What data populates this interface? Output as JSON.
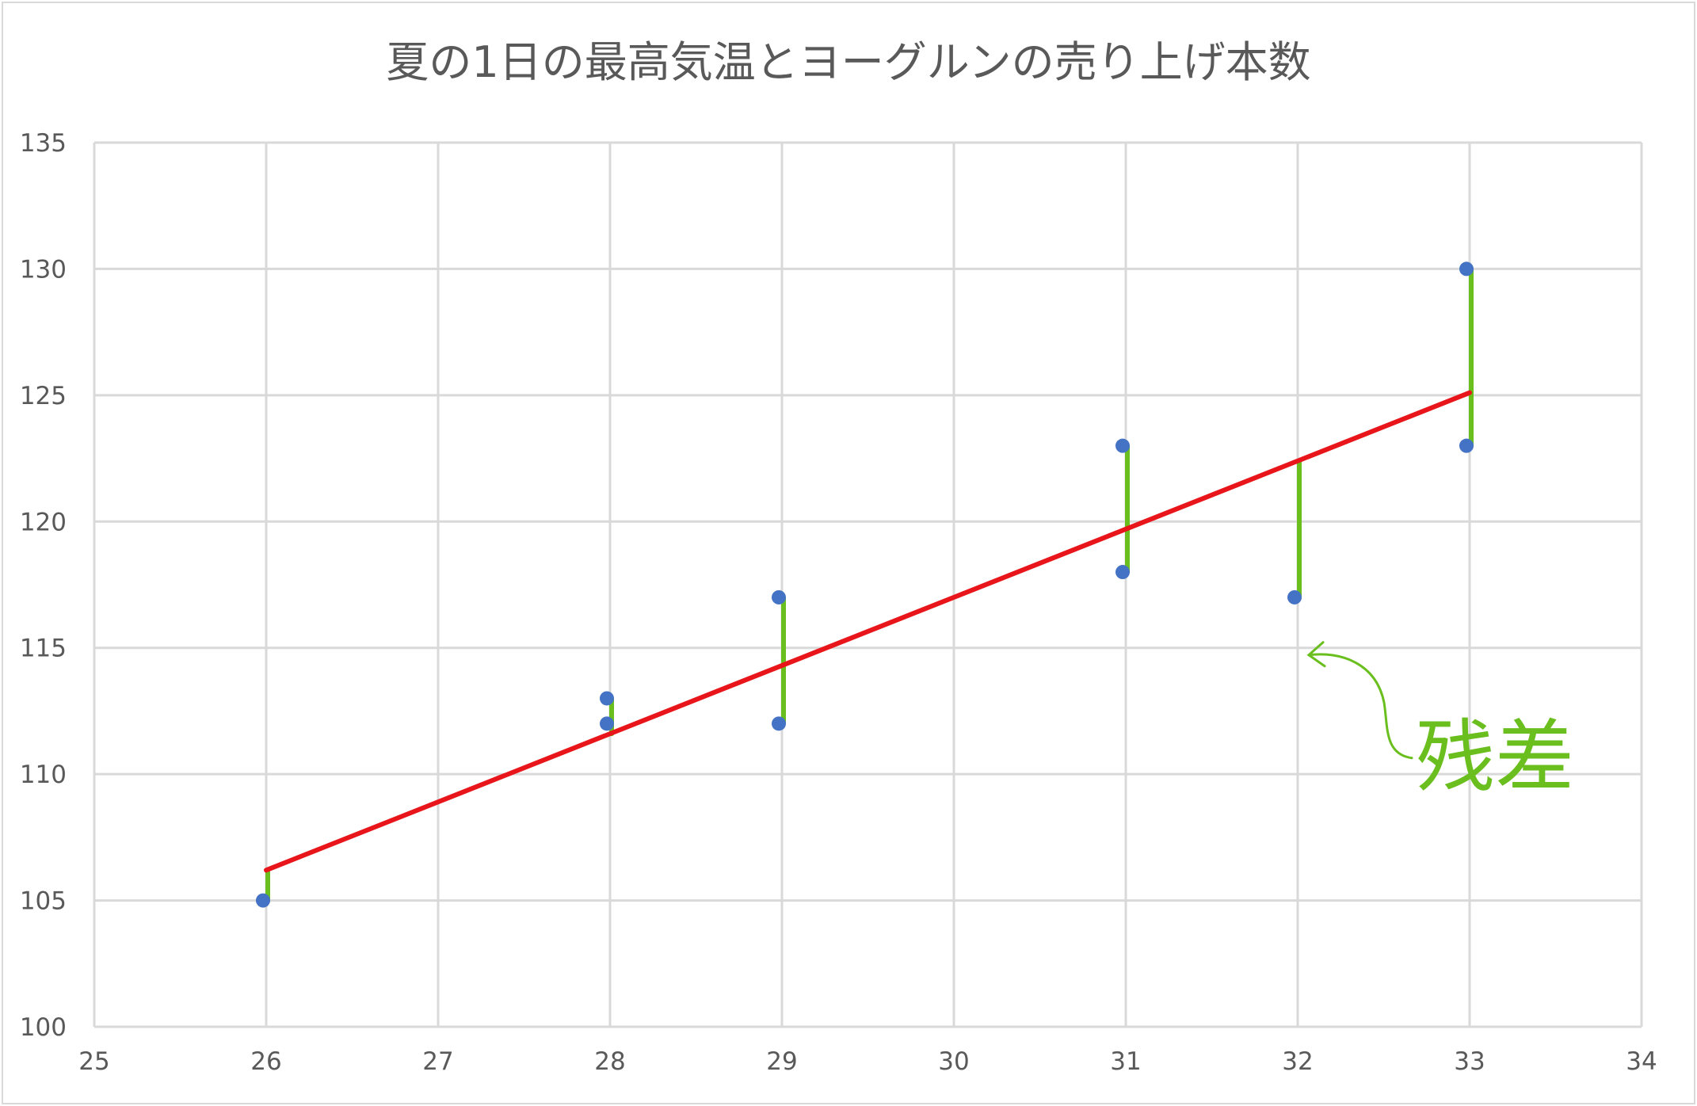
{
  "chart_data": {
    "type": "scatter",
    "title": "夏の1日の最高気温とヨーグルンの売り上げ本数",
    "xlabel": "",
    "ylabel": "",
    "xlim": [
      25,
      34
    ],
    "ylim": [
      100,
      135
    ],
    "x_ticks": [
      "25",
      "26",
      "27",
      "28",
      "29",
      "30",
      "31",
      "32",
      "33",
      "34"
    ],
    "y_ticks": [
      "100",
      "105",
      "110",
      "115",
      "120",
      "125",
      "130",
      "135"
    ],
    "grid": true,
    "points": [
      {
        "x": 26,
        "y": 105
      },
      {
        "x": 28,
        "y": 113
      },
      {
        "x": 28,
        "y": 112
      },
      {
        "x": 29,
        "y": 117
      },
      {
        "x": 29,
        "y": 112
      },
      {
        "x": 31,
        "y": 123
      },
      {
        "x": 31,
        "y": 118
      },
      {
        "x": 32,
        "y": 117
      },
      {
        "x": 33,
        "y": 130
      },
      {
        "x": 33,
        "y": 123
      }
    ],
    "regression_line": {
      "slope": 2.7,
      "intercept": 36,
      "x_range": [
        26,
        33
      ]
    },
    "annotation": {
      "text": "残差",
      "points_to_x": 32
    },
    "colors": {
      "points": "#4472c4",
      "regression": "#e8161b",
      "residuals": "#6abf1e",
      "grid": "#d9d9d9",
      "text": "#595959"
    }
  }
}
